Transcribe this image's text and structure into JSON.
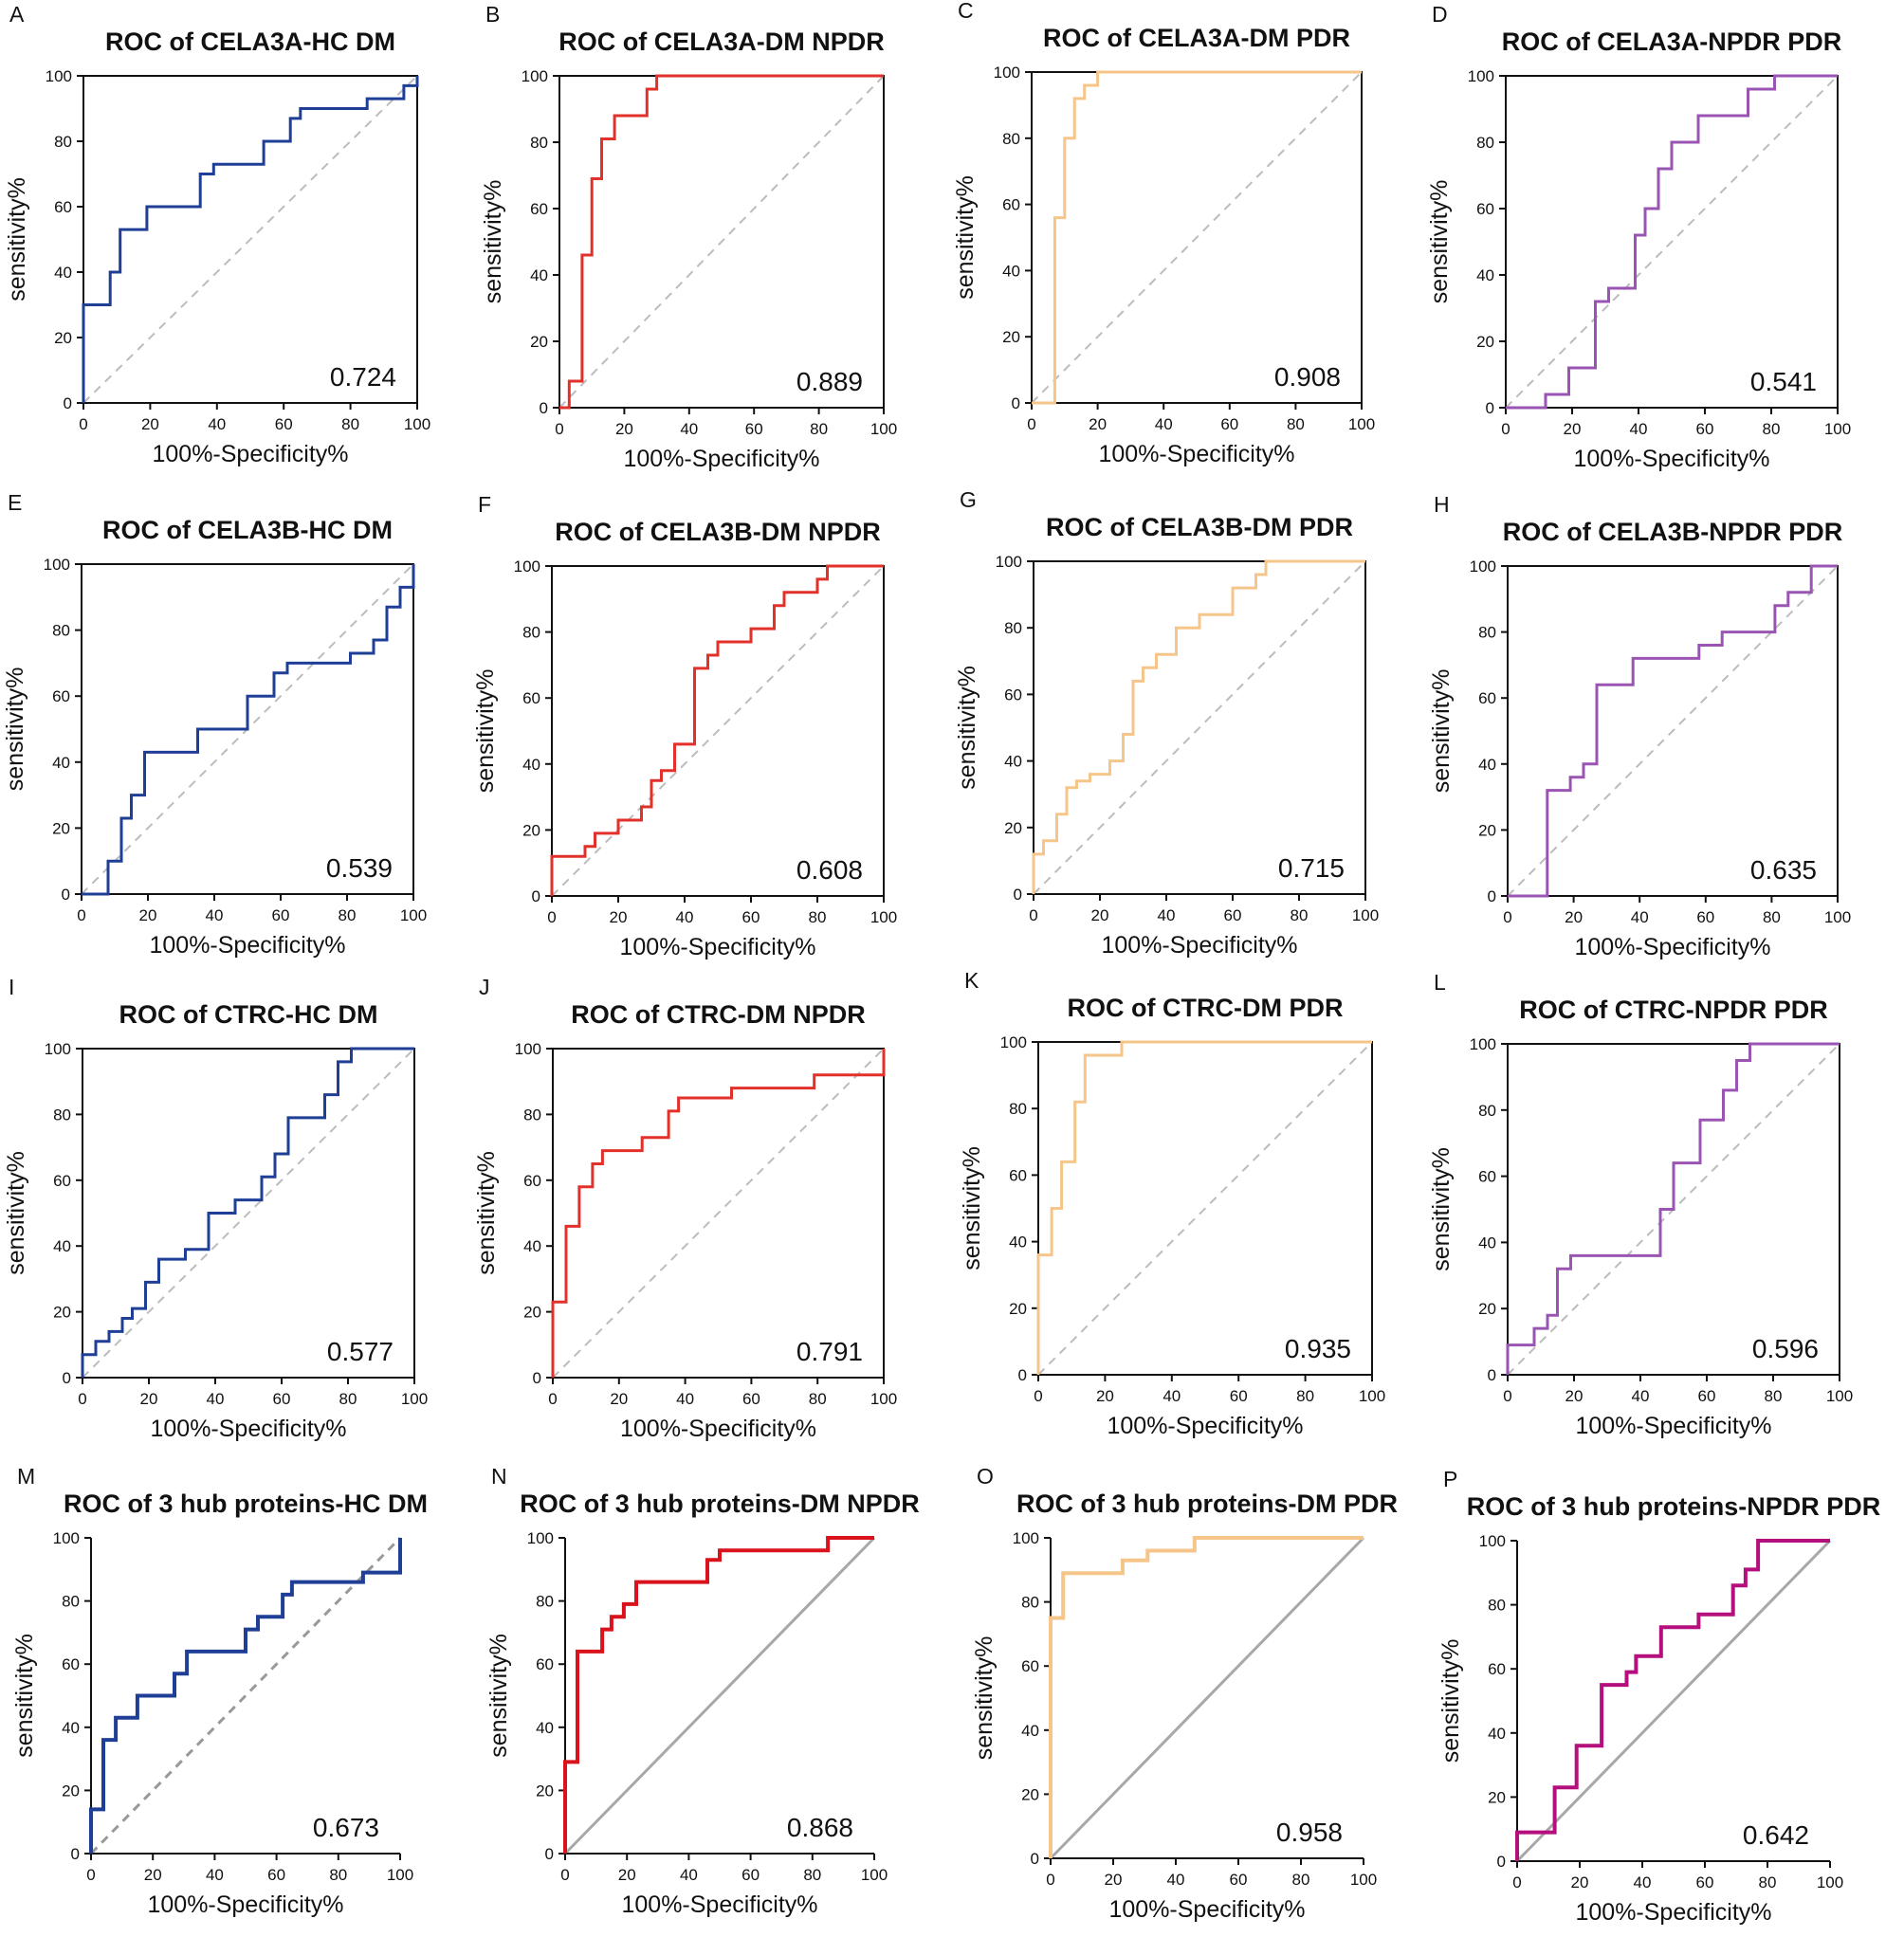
{
  "figure": {
    "x_axis_label": "100%-Specificity%",
    "y_axis_label": "sensitivity%",
    "x_ticks": [
      "0",
      "20",
      "40",
      "60",
      "80",
      "100"
    ],
    "y_ticks": [
      "0",
      "20",
      "40",
      "60",
      "80",
      "100"
    ],
    "colors": {
      "blue": "#1f3f97",
      "red": "#e2312a",
      "orange": "#f5c58a",
      "purple": "#9a55b3",
      "darkred": "#d9121b",
      "magenta": "#b40f7c",
      "diagonal": "#bcbcbc",
      "diagonal_solid": "#a8a8a8"
    }
  },
  "chart_data": [
    {
      "letter": "A",
      "title": "ROC of CELA3A-HC DM",
      "auc": "0.724",
      "type": "line",
      "color": "#1f3f97",
      "x": [
        0,
        0,
        8,
        8,
        11,
        11,
        19,
        19,
        35,
        35,
        39,
        39,
        54,
        54,
        62,
        62,
        65,
        65,
        85,
        85,
        96,
        96,
        100,
        100
      ],
      "y": [
        0,
        30,
        30,
        40,
        40,
        53,
        53,
        60,
        60,
        70,
        70,
        73,
        73,
        80,
        80,
        87,
        87,
        90,
        90,
        93,
        93,
        97,
        97,
        100
      ],
      "xlim": [
        0,
        100
      ],
      "ylim": [
        0,
        100
      ]
    },
    {
      "letter": "B",
      "title": "ROC of CELA3A-DM NPDR",
      "auc": "0.889",
      "type": "line",
      "color": "#e2312a",
      "x": [
        0,
        0,
        3,
        3,
        7,
        7,
        10,
        10,
        13,
        13,
        17,
        17,
        27,
        27,
        30,
        30,
        100
      ],
      "y": [
        0,
        0,
        0,
        8,
        8,
        46,
        46,
        69,
        69,
        81,
        81,
        88,
        88,
        96,
        96,
        100,
        100
      ],
      "xlim": [
        0,
        100
      ],
      "ylim": [
        0,
        100
      ]
    },
    {
      "letter": "C",
      "title": "ROC of CELA3A-DM PDR",
      "auc": "0.908",
      "type": "line",
      "color": "#f5c58a",
      "x": [
        0,
        0,
        7,
        7,
        10,
        10,
        13,
        13,
        16,
        16,
        20,
        20,
        100
      ],
      "y": [
        0,
        0,
        0,
        56,
        56,
        80,
        80,
        92,
        92,
        96,
        96,
        100,
        100
      ],
      "xlim": [
        0,
        100
      ],
      "ylim": [
        0,
        100
      ]
    },
    {
      "letter": "D",
      "title": "ROC of CELA3A-NPDR PDR",
      "auc": "0.541",
      "type": "line",
      "color": "#9a55b3",
      "x": [
        0,
        0,
        12,
        12,
        19,
        19,
        27,
        27,
        31,
        31,
        39,
        39,
        42,
        42,
        46,
        46,
        50,
        50,
        58,
        58,
        73,
        73,
        81,
        81,
        88,
        88,
        100
      ],
      "y": [
        0,
        0,
        0,
        4,
        4,
        12,
        12,
        32,
        32,
        36,
        36,
        52,
        52,
        60,
        60,
        72,
        72,
        80,
        80,
        88,
        88,
        96,
        96,
        100,
        100,
        100,
        100
      ],
      "xlim": [
        0,
        100
      ],
      "ylim": [
        0,
        100
      ]
    },
    {
      "letter": "E",
      "title": "ROC of CELA3B-HC DM",
      "auc": "0.539",
      "type": "line",
      "color": "#1f3f97",
      "x": [
        0,
        0,
        8,
        8,
        12,
        12,
        15,
        15,
        19,
        19,
        35,
        35,
        50,
        50,
        58,
        58,
        62,
        62,
        81,
        81,
        88,
        88,
        92,
        92,
        96,
        96,
        100,
        100
      ],
      "y": [
        0,
        0,
        0,
        10,
        10,
        23,
        23,
        30,
        30,
        43,
        43,
        50,
        50,
        60,
        60,
        67,
        67,
        70,
        70,
        73,
        73,
        77,
        77,
        87,
        87,
        93,
        93,
        100
      ],
      "xlim": [
        0,
        100
      ],
      "ylim": [
        0,
        100
      ]
    },
    {
      "letter": "F",
      "title": "ROC of CELA3B-DM NPDR",
      "auc": "0.608",
      "type": "line",
      "color": "#e2312a",
      "x": [
        0,
        0,
        10,
        10,
        13,
        13,
        20,
        20,
        27,
        27,
        30,
        30,
        33,
        33,
        37,
        37,
        43,
        43,
        47,
        47,
        50,
        50,
        60,
        60,
        67,
        67,
        70,
        70,
        80,
        80,
        83,
        83,
        100
      ],
      "y": [
        0,
        12,
        12,
        15,
        15,
        19,
        19,
        23,
        23,
        27,
        27,
        35,
        35,
        38,
        38,
        46,
        46,
        69,
        69,
        73,
        73,
        77,
        77,
        81,
        81,
        88,
        88,
        92,
        92,
        96,
        96,
        100,
        100
      ],
      "xlim": [
        0,
        100
      ],
      "ylim": [
        0,
        100
      ]
    },
    {
      "letter": "G",
      "title": "ROC of CELA3B-DM PDR",
      "auc": "0.715",
      "type": "line",
      "color": "#f5c58a",
      "x": [
        0,
        0,
        3,
        3,
        7,
        7,
        10,
        10,
        13,
        13,
        17,
        17,
        23,
        23,
        27,
        27,
        30,
        30,
        33,
        33,
        37,
        37,
        43,
        43,
        50,
        50,
        60,
        60,
        67,
        67,
        70,
        70,
        100
      ],
      "y": [
        0,
        12,
        12,
        16,
        16,
        24,
        24,
        32,
        32,
        34,
        34,
        36,
        36,
        40,
        40,
        48,
        48,
        64,
        64,
        68,
        68,
        72,
        72,
        80,
        80,
        84,
        84,
        92,
        92,
        96,
        96,
        100,
        100
      ],
      "xlim": [
        0,
        100
      ],
      "ylim": [
        0,
        100
      ]
    },
    {
      "letter": "H",
      "title": "ROC of CELA3B-NPDR PDR",
      "auc": "0.635",
      "type": "line",
      "color": "#9a55b3",
      "x": [
        0,
        0,
        12,
        12,
        19,
        19,
        23,
        23,
        27,
        27,
        38,
        38,
        58,
        58,
        65,
        65,
        81,
        81,
        85,
        85,
        92,
        92,
        100
      ],
      "y": [
        0,
        0,
        0,
        32,
        32,
        36,
        36,
        40,
        40,
        64,
        64,
        72,
        72,
        76,
        76,
        80,
        80,
        88,
        88,
        92,
        92,
        100,
        100
      ],
      "xlim": [
        0,
        100
      ],
      "ylim": [
        0,
        100
      ]
    },
    {
      "letter": "I",
      "title": "ROC of CTRC-HC DM",
      "auc": "0.577",
      "type": "line",
      "color": "#1f3f97",
      "x": [
        0,
        0,
        4,
        4,
        8,
        8,
        12,
        12,
        15,
        15,
        19,
        19,
        23,
        23,
        31,
        31,
        38,
        38,
        46,
        46,
        54,
        54,
        58,
        58,
        62,
        62,
        73,
        73,
        77,
        77,
        81,
        81,
        100
      ],
      "y": [
        0,
        7,
        7,
        11,
        11,
        14,
        14,
        18,
        18,
        21,
        21,
        29,
        29,
        36,
        36,
        39,
        39,
        50,
        50,
        54,
        54,
        61,
        61,
        68,
        68,
        79,
        79,
        86,
        86,
        96,
        96,
        100,
        100
      ],
      "xlim": [
        0,
        100
      ],
      "ylim": [
        0,
        100
      ]
    },
    {
      "letter": "J",
      "title": "ROC of CTRC-DM NPDR",
      "auc": "0.791",
      "type": "line",
      "color": "#e2312a",
      "x": [
        0,
        0,
        4,
        4,
        8,
        8,
        12,
        12,
        15,
        15,
        27,
        27,
        35,
        35,
        38,
        38,
        54,
        54,
        79,
        79,
        100,
        100
      ],
      "y": [
        0,
        23,
        23,
        46,
        46,
        58,
        58,
        65,
        65,
        69,
        69,
        73,
        73,
        81,
        81,
        85,
        85,
        88,
        88,
        92,
        92,
        100
      ],
      "xlim": [
        0,
        100
      ],
      "ylim": [
        0,
        100
      ]
    },
    {
      "letter": "K",
      "title": "ROC of CTRC-DM PDR",
      "auc": "0.935",
      "type": "line",
      "color": "#f5c58a",
      "x": [
        0,
        0,
        4,
        4,
        7,
        7,
        11,
        11,
        14,
        14,
        25,
        25,
        100
      ],
      "y": [
        0,
        36,
        36,
        50,
        50,
        64,
        64,
        82,
        82,
        96,
        96,
        100,
        100
      ],
      "xlim": [
        0,
        100
      ],
      "ylim": [
        0,
        100
      ]
    },
    {
      "letter": "L",
      "title": "ROC of CTRC-NPDR PDR",
      "auc": "0.596",
      "type": "line",
      "color": "#9a55b3",
      "x": [
        0,
        0,
        8,
        8,
        12,
        12,
        15,
        15,
        19,
        19,
        46,
        46,
        50,
        50,
        58,
        58,
        65,
        65,
        69,
        69,
        73,
        73,
        100
      ],
      "y": [
        0,
        9,
        9,
        14,
        14,
        18,
        18,
        32,
        32,
        36,
        36,
        50,
        50,
        64,
        64,
        77,
        77,
        86,
        86,
        95,
        95,
        100,
        100
      ],
      "xlim": [
        0,
        100
      ],
      "ylim": [
        0,
        100
      ]
    },
    {
      "letter": "M",
      "title": "ROC of 3 hub proteins-HC DM",
      "auc": "0.673",
      "type": "line",
      "color": "#1f3f97",
      "x": [
        0,
        0,
        4,
        4,
        8,
        8,
        15,
        15,
        27,
        27,
        31,
        31,
        50,
        50,
        54,
        54,
        62,
        62,
        65,
        65,
        88,
        88,
        100,
        100
      ],
      "y": [
        0,
        14,
        14,
        36,
        36,
        43,
        43,
        50,
        50,
        57,
        57,
        64,
        64,
        71,
        71,
        75,
        75,
        82,
        82,
        86,
        86,
        89,
        89,
        100
      ],
      "xlim": [
        0,
        100
      ],
      "ylim": [
        0,
        100
      ]
    },
    {
      "letter": "N",
      "title": "ROC of 3 hub proteins-DM NPDR",
      "auc": "0.868",
      "type": "line",
      "color": "#d9121b",
      "x": [
        0,
        0,
        4,
        4,
        12,
        12,
        15,
        15,
        19,
        19,
        23,
        23,
        35,
        35,
        46,
        46,
        50,
        50,
        85,
        85,
        100
      ],
      "y": [
        0,
        29,
        29,
        64,
        64,
        71,
        71,
        75,
        75,
        79,
        79,
        86,
        86,
        86,
        86,
        93,
        93,
        96,
        96,
        100,
        100
      ],
      "xlim": [
        0,
        100
      ],
      "ylim": [
        0,
        100
      ]
    },
    {
      "letter": "O",
      "title": "ROC of 3 hub proteins-DM PDR",
      "auc": "0.958",
      "type": "line",
      "color": "#f5c58a",
      "x": [
        0,
        0,
        4,
        4,
        23,
        23,
        31,
        31,
        46,
        46,
        100
      ],
      "y": [
        0,
        75,
        75,
        89,
        89,
        93,
        93,
        96,
        96,
        100,
        100
      ],
      "xlim": [
        0,
        100
      ],
      "ylim": [
        0,
        100
      ]
    },
    {
      "letter": "P",
      "title": "ROC of 3 hub proteins-NPDR PDR",
      "auc": "0.642",
      "type": "line",
      "color": "#b40f7c",
      "x": [
        0,
        0,
        12,
        12,
        19,
        19,
        27,
        27,
        35,
        35,
        38,
        38,
        46,
        46,
        58,
        58,
        69,
        69,
        73,
        73,
        77,
        77,
        100
      ],
      "y": [
        0,
        9,
        9,
        23,
        23,
        36,
        36,
        55,
        55,
        59,
        59,
        64,
        64,
        73,
        73,
        77,
        77,
        86,
        86,
        91,
        91,
        100,
        100
      ],
      "xlim": [
        0,
        100
      ],
      "ylim": [
        0,
        100
      ]
    }
  ]
}
